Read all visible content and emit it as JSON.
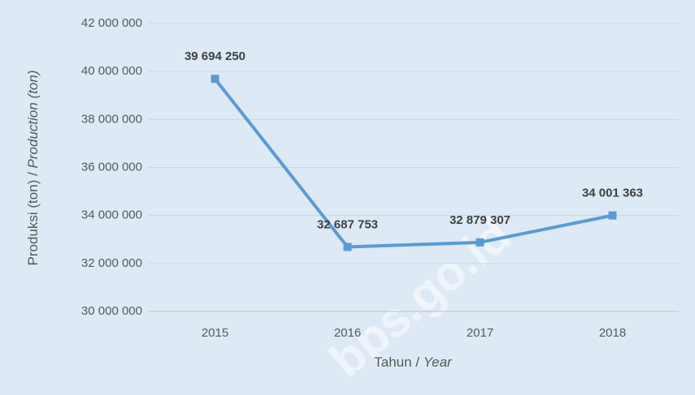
{
  "chart_data": {
    "type": "line",
    "categories": [
      "2015",
      "2016",
      "2017",
      "2018"
    ],
    "series": [
      {
        "name": "Produksi",
        "color": "#5b9bd5",
        "values": [
          39694250,
          32687753,
          32879307,
          34001363
        ],
        "value_labels": [
          "39 694 250",
          "32 687 753",
          "32 879 307",
          "34 001 363"
        ]
      }
    ],
    "ylim": [
      30000000,
      42000000
    ],
    "yticks": [
      {
        "value": 30000000,
        "label": "30 000 000"
      },
      {
        "value": 32000000,
        "label": "32 000 000"
      },
      {
        "value": 34000000,
        "label": "34 000 000"
      },
      {
        "value": 36000000,
        "label": "36 000 000"
      },
      {
        "value": 38000000,
        "label": "38 000 000"
      },
      {
        "value": 40000000,
        "label": "40 000 000"
      },
      {
        "value": 42000000,
        "label": "42 000 000"
      }
    ],
    "grid": true,
    "ylabel": [
      "Produksi (ton) / ",
      "Production (ton)"
    ],
    "xlabel": [
      "Tahun / ",
      "Year"
    ],
    "watermark": "bps.go.id"
  }
}
